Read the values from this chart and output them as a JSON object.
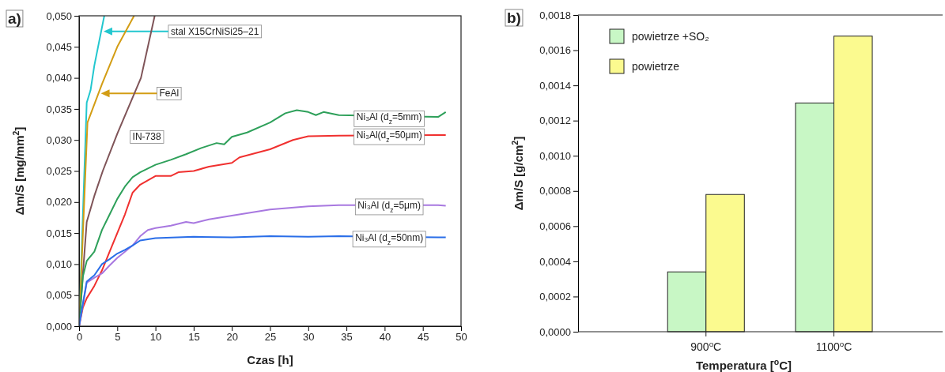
{
  "chart_data": [
    {
      "type": "line",
      "title": "a)",
      "xlabel": "Czas [h]",
      "ylabel": "Δm/S  [mg/mm$^{2}$]",
      "xlim": [
        0,
        50
      ],
      "xticks": [
        0,
        5,
        10,
        15,
        20,
        25,
        30,
        35,
        40,
        45,
        50
      ],
      "ylim": [
        0,
        0.05
      ],
      "yticks": [
        {
          "value": 0,
          "label": "0,000"
        },
        {
          "value": 0.005,
          "label": "0,005"
        },
        {
          "value": 0.01,
          "label": "0,010"
        },
        {
          "value": 0.015,
          "label": "0,015"
        },
        {
          "value": 0.02,
          "label": "0,020"
        },
        {
          "value": 0.025,
          "label": "0,025"
        },
        {
          "value": 0.03,
          "label": "0,030"
        },
        {
          "value": 0.035,
          "label": "0,035"
        },
        {
          "value": 0.04,
          "label": "0,040"
        },
        {
          "value": 0.045,
          "label": "0,045"
        },
        {
          "value": 0.05,
          "label": "0,050"
        }
      ],
      "grid": false,
      "legend": false,
      "marker": "none",
      "line_style": "solid",
      "series": [
        {
          "name": "stal X15CrNiSi25–21",
          "color": "#22c7cf",
          "x": [
            0,
            1,
            1.5,
            2,
            3.3
          ],
          "values": [
            0,
            0.036,
            0.038,
            0.042,
            0.05
          ]
        },
        {
          "name": "FeAl",
          "color": "#d39d14",
          "x": [
            0,
            1.1,
            3,
            5,
            7.2
          ],
          "values": [
            0,
            0.0328,
            0.039,
            0.045,
            0.05
          ]
        },
        {
          "name": "IN-738",
          "color": "#7f5458",
          "x": [
            0,
            1,
            2,
            3.1,
            5,
            8.1,
            9.9
          ],
          "values": [
            0,
            0.0168,
            0.021,
            0.025,
            0.031,
            0.04,
            0.05
          ]
        },
        {
          "name": "Ni₃Al (d$_{z}$=5mm)",
          "color": "#2ea05a",
          "x": [
            0,
            0.5,
            1,
            2,
            3,
            4,
            5,
            6,
            7,
            8,
            10,
            12,
            14,
            16,
            18,
            19,
            20,
            22,
            25,
            27,
            28.5,
            30,
            31,
            32,
            34,
            47,
            48
          ],
          "values": [
            0,
            0.008,
            0.0105,
            0.012,
            0.0155,
            0.018,
            0.0205,
            0.0225,
            0.024,
            0.0248,
            0.026,
            0.0268,
            0.0277,
            0.0287,
            0.0295,
            0.0293,
            0.0305,
            0.0312,
            0.0328,
            0.0343,
            0.0348,
            0.0345,
            0.034,
            0.0345,
            0.034,
            0.0337,
            0.0345
          ]
        },
        {
          "name": "Ni₃Al(d$_{z}$=50μm)",
          "color": "#f0302f",
          "x": [
            0,
            0.5,
            1,
            2,
            3,
            4,
            5,
            6,
            7,
            8,
            9,
            10,
            12,
            13,
            15,
            17,
            20,
            21,
            25,
            28,
            30,
            34,
            47,
            48
          ],
          "values": [
            0,
            0.003,
            0.0045,
            0.0065,
            0.009,
            0.012,
            0.015,
            0.018,
            0.0215,
            0.0228,
            0.0235,
            0.0242,
            0.0242,
            0.0248,
            0.025,
            0.0257,
            0.0263,
            0.0272,
            0.0285,
            0.03,
            0.0306,
            0.0307,
            0.0308,
            0.0308
          ]
        },
        {
          "name": "Ni₃Al (d$_{z}$=5μm)",
          "color": "#a878e0",
          "x": [
            0,
            1,
            2,
            3,
            4,
            5,
            6,
            7,
            8,
            9,
            10,
            12,
            14,
            15,
            17,
            20,
            25,
            30,
            34,
            47,
            48
          ],
          "values": [
            0,
            0.007,
            0.0078,
            0.0085,
            0.0098,
            0.011,
            0.012,
            0.013,
            0.0145,
            0.0155,
            0.0158,
            0.0162,
            0.0168,
            0.0166,
            0.0172,
            0.0178,
            0.0188,
            0.0193,
            0.0195,
            0.0195,
            0.0194
          ]
        },
        {
          "name": "Ni₃Al (d$_{z}$=50nm)",
          "color": "#2a6ee8",
          "x": [
            0,
            1,
            2,
            3,
            4,
            5,
            6,
            7,
            8,
            9,
            10,
            15,
            20,
            25,
            30,
            34,
            47,
            48
          ],
          "values": [
            0,
            0.0072,
            0.0082,
            0.01,
            0.0108,
            0.0117,
            0.0123,
            0.013,
            0.0138,
            0.014,
            0.0142,
            0.0144,
            0.0143,
            0.0145,
            0.0144,
            0.0145,
            0.0143,
            0.0143
          ]
        }
      ]
    },
    {
      "type": "bar",
      "title": "b)",
      "xlabel": "Temperatura [$^{o}$C]",
      "ylabel": "Δm/S [g/cm$^{2}$]",
      "categories": [
        "900$^{o}$C",
        "1100$^{o}$C"
      ],
      "ylim": [
        0,
        0.0018
      ],
      "yticks": [
        {
          "value": 0,
          "label": "0,0000"
        },
        {
          "value": 0.0002,
          "label": "0,0002"
        },
        {
          "value": 0.0004,
          "label": "0,0004"
        },
        {
          "value": 0.0006,
          "label": "0,0006"
        },
        {
          "value": 0.0008,
          "label": "0,0008"
        },
        {
          "value": 0.001,
          "label": "0,0010"
        },
        {
          "value": 0.0012,
          "label": "0,0012"
        },
        {
          "value": 0.0014,
          "label": "0,0014"
        },
        {
          "value": 0.0016,
          "label": "0,0016"
        },
        {
          "value": 0.0018,
          "label": "0,0018"
        }
      ],
      "grid": false,
      "legend": "top left",
      "series": [
        {
          "name": "powietrze +SO₂",
          "color": "#c8f7c5",
          "values": [
            0.00034,
            0.0013
          ]
        },
        {
          "name": "powietrze",
          "color": "#fbfa8f",
          "values": [
            0.00078,
            0.00168
          ]
        }
      ]
    }
  ]
}
